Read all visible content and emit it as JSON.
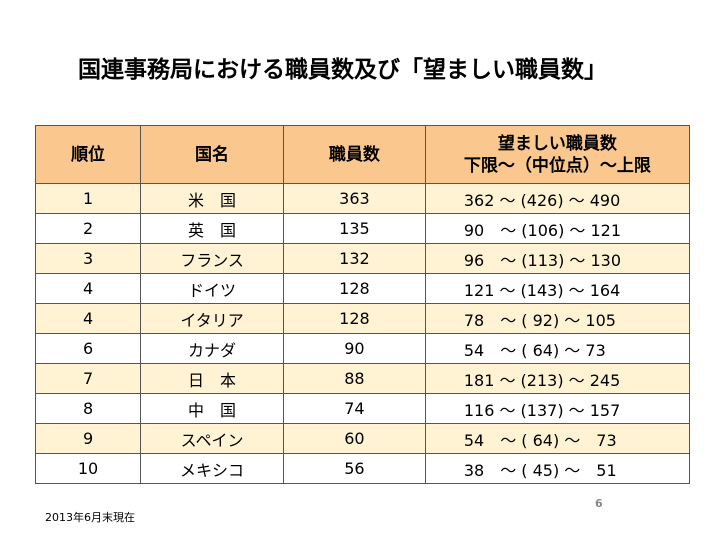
{
  "header": {
    "title": "国連事務局における職員数及び「望ましい職員数」"
  },
  "table": {
    "columns": [
      "順位",
      "国名",
      "職員数",
      "望ましい職員数\n下限～（中位点）～上限"
    ],
    "rows": [
      [
        "1",
        "米　国",
        "363",
        "362 ～ (426) ～ 490"
      ],
      [
        "2",
        "英　国",
        "135",
        "90　～ (106) ～ 121"
      ],
      [
        "3",
        "フランス",
        "132",
        "96　～ (113) ～ 130"
      ],
      [
        "4",
        "ドイツ",
        "128",
        "121 ～ (143) ～ 164"
      ],
      [
        "4",
        "イタリア",
        "128",
        "78　～ ( 92) ～ 105"
      ],
      [
        "6",
        "カナダ",
        "90",
        "54　～ ( 64) ～ 73"
      ],
      [
        "7",
        "日　本",
        "88",
        "181 ～ (213) ～ 245"
      ],
      [
        "8",
        "中　国",
        "74",
        "116 ～ (137) ～ 157"
      ],
      [
        "9",
        "スペイン",
        "60",
        "54　～ ( 64) ～　73"
      ],
      [
        "10",
        "メキシコ",
        "56",
        "38　～ ( 45) ～　51"
      ]
    ]
  },
  "footer": {
    "note": "2013年6月末現在",
    "page": "6"
  }
}
